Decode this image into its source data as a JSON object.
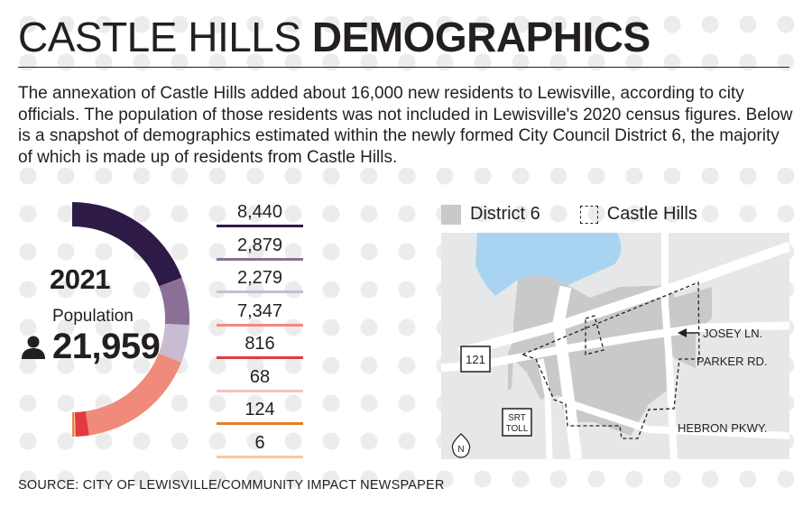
{
  "title": {
    "regular": "CASTLE HILLS",
    "bold": "DEMOGRAPHICS"
  },
  "intro": "The annexation of Castle Hills added about 16,000 new residents to Lewisville, according to city officials. The population of those residents was not included in Lewisville's 2020 census figures. Below is a snapshot of demographics estimated within the newly formed City Council District 6, the majority of which is made up of residents from Castle Hills.",
  "population": {
    "year": "2021",
    "label": "Population",
    "value": "21,959",
    "icon": "person-icon"
  },
  "chart_data": {
    "type": "donut",
    "total": 21959,
    "values": [
      8440,
      2879,
      2279,
      7347,
      816,
      68,
      124,
      6
    ],
    "labels": [
      "8,440",
      "2,879",
      "2,279",
      "7,347",
      "816",
      "68",
      "124",
      "6"
    ],
    "colors": [
      "#2e1a47",
      "#8b6f97",
      "#c7bcd1",
      "#f08a7a",
      "#e33a40",
      "#f6c3ba",
      "#e47f25",
      "#f6c9a2"
    ]
  },
  "map": {
    "legend": {
      "district": "District 6",
      "castle_hills": "Castle Hills"
    },
    "labels": {
      "josey": "JOSEY LN.",
      "parker": "PARKER RD.",
      "hebron": "HEBRON PKWY.",
      "hwy121": "121",
      "srt1": "SRT",
      "srt2": "TOLL",
      "north": "N"
    },
    "colors": {
      "district_fill": "#c8c9cb",
      "water": "#a9d4f1",
      "road": "#ffffff",
      "background": "#e6e7e8"
    }
  },
  "source": "SOURCE: CITY OF LEWISVILLE/COMMUNITY IMPACT NEWSPAPER"
}
